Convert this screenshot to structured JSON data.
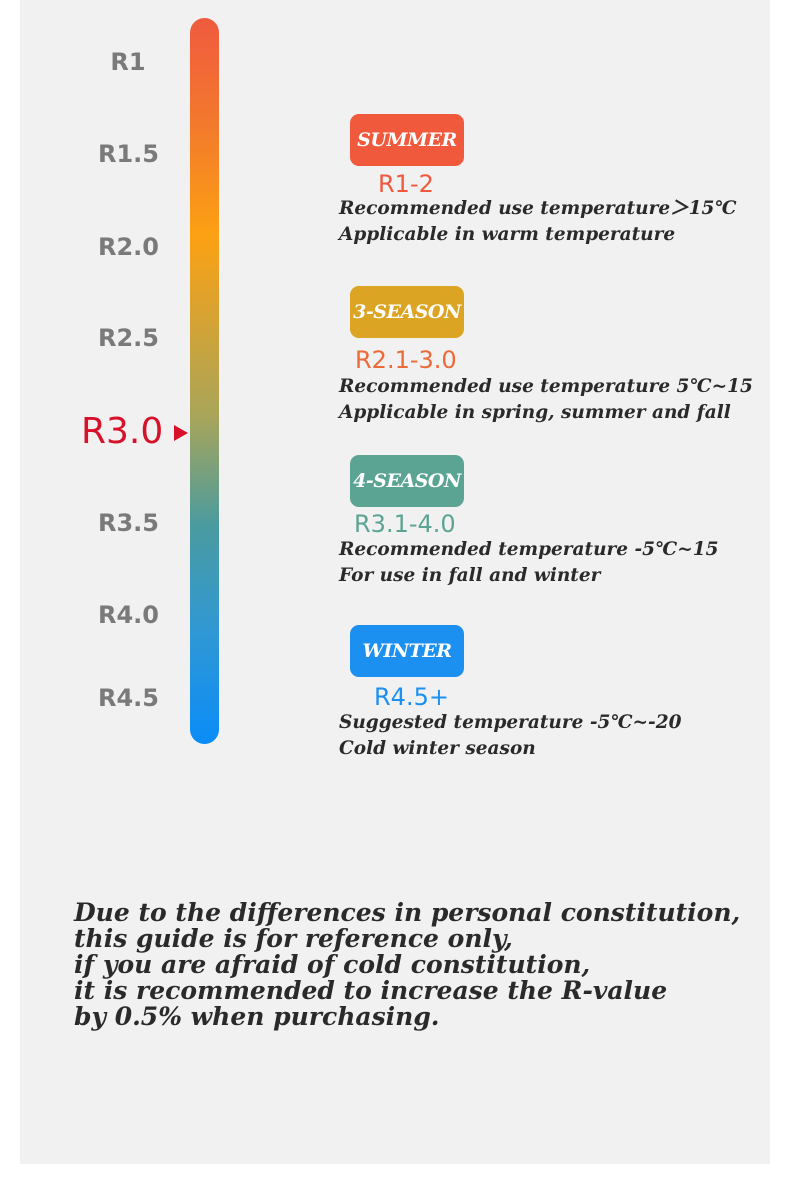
{
  "scale": {
    "ticks": [
      "R1",
      "R1.5",
      "R2.0",
      "R2.5",
      "R3.5",
      "R4.0",
      "R4.5"
    ],
    "current": "R3.0"
  },
  "seasons": [
    {
      "badge": "SUMMER",
      "badge_color": "#f0593c",
      "range": "R1-2",
      "range_color": "#f0593c",
      "line1": "Recommended use temperature＞15℃",
      "line2": "Applicable in warm temperature"
    },
    {
      "badge": "3-SEASON",
      "badge_color": "#dba423",
      "range": "R2.1-3.0",
      "range_color": "#ec6a38",
      "line1": "Recommended use temperature 5℃~15",
      "line2": "Applicable in spring, summer and fall"
    },
    {
      "badge": "4-SEASON",
      "badge_color": "#5ba493",
      "range": "R3.1-4.0",
      "range_color": "#5ba493",
      "line1": "Recommended temperature -5℃~15",
      "line2": "For use in fall and winter"
    },
    {
      "badge": "WINTER",
      "badge_color": "#1b90f0",
      "range": "R4.5+",
      "range_color": "#1b90f0",
      "line1": "Suggested temperature -5℃~-20",
      "line2": "Cold winter season"
    }
  ],
  "note": [
    "Due to the differences in personal constitution,",
    "this guide is for reference only,",
    "if you are afraid of cold constitution,",
    "it is recommended to increase the R-value",
    "by 0.5% when purchasing."
  ]
}
